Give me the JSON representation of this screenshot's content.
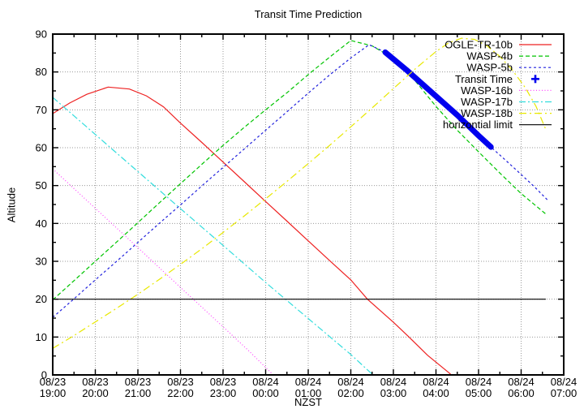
{
  "chart_data": {
    "type": "line",
    "title": "Transit Time Prediction",
    "xlabel": "NZST",
    "ylabel": "Altitude",
    "xlim": [
      0,
      12
    ],
    "ylim": [
      0,
      90
    ],
    "grid": true,
    "legend_position": "top-right-inside",
    "background_color": "#ffffff",
    "axis_color": "#000000",
    "grid_color": "#999999",
    "x_ticks": [
      {
        "date": "08/23",
        "time": "19:00"
      },
      {
        "date": "08/23",
        "time": "20:00"
      },
      {
        "date": "08/23",
        "time": "21:00"
      },
      {
        "date": "08/23",
        "time": "22:00"
      },
      {
        "date": "08/23",
        "time": "23:00"
      },
      {
        "date": "08/24",
        "time": "00:00"
      },
      {
        "date": "08/24",
        "time": "01:00"
      },
      {
        "date": "08/24",
        "time": "02:00"
      },
      {
        "date": "08/24",
        "time": "03:00"
      },
      {
        "date": "08/24",
        "time": "04:00"
      },
      {
        "date": "08/24",
        "time": "05:00"
      },
      {
        "date": "08/24",
        "time": "06:00"
      },
      {
        "date": "08/24",
        "time": "07:00"
      }
    ],
    "y_ticks": [
      "0",
      "10",
      "20",
      "30",
      "40",
      "50",
      "60",
      "70",
      "80",
      "90"
    ],
    "x_minor_step": 0.5,
    "y_minor_step": 5,
    "series": [
      {
        "name": "OGLE-TR-10b",
        "color": "#ee2222",
        "dash": "",
        "width": 1.2,
        "marker": "",
        "points": [
          [
            0,
            69
          ],
          [
            0.4,
            71.8
          ],
          [
            0.8,
            74.1
          ],
          [
            1.3,
            76
          ],
          [
            1.8,
            75.5
          ],
          [
            2.2,
            73.7
          ],
          [
            2.6,
            70.8
          ],
          [
            3,
            66.5
          ],
          [
            3.5,
            61.4
          ],
          [
            4,
            56.2
          ],
          [
            4.5,
            51
          ],
          [
            5,
            45.8
          ],
          [
            5.5,
            40.6
          ],
          [
            6,
            35.4
          ],
          [
            6.5,
            30.2
          ],
          [
            7,
            25.1
          ],
          [
            7.39,
            20
          ],
          [
            8,
            13.9
          ],
          [
            8.34,
            10.3
          ],
          [
            8.8,
            5.2
          ],
          [
            9.3,
            0.6
          ],
          [
            9.36,
            0
          ]
        ]
      },
      {
        "name": "WASP-4b",
        "color": "#00c400",
        "dash": "5,3",
        "width": 1.2,
        "marker": "",
        "points": [
          [
            0,
            19.8
          ],
          [
            0.5,
            24.9
          ],
          [
            1,
            30
          ],
          [
            1.5,
            35.1
          ],
          [
            2,
            40.2
          ],
          [
            2.5,
            45.4
          ],
          [
            3,
            50.5
          ],
          [
            3.5,
            55.6
          ],
          [
            4,
            60.6
          ],
          [
            4.5,
            65.4
          ],
          [
            5,
            70
          ],
          [
            5.5,
            74.5
          ],
          [
            6,
            79.3
          ],
          [
            6.5,
            83.9
          ],
          [
            7,
            88.3
          ],
          [
            7.5,
            86.9
          ],
          [
            8,
            83.6
          ],
          [
            8.5,
            77.8
          ],
          [
            9,
            70.9
          ],
          [
            9.5,
            64.6
          ],
          [
            10,
            58.9
          ],
          [
            10.5,
            53.3
          ],
          [
            11,
            47.9
          ],
          [
            11.58,
            42.5
          ]
        ]
      },
      {
        "name": "WASP-5b",
        "color": "#2222dd",
        "dash": "3,3",
        "width": 1.2,
        "marker": "",
        "points": [
          [
            0,
            15.2
          ],
          [
            0.5,
            20.1
          ],
          [
            1,
            25.1
          ],
          [
            1.5,
            30
          ],
          [
            2,
            35
          ],
          [
            2.5,
            40
          ],
          [
            3,
            44.9
          ],
          [
            3.5,
            49.9
          ],
          [
            4,
            54.8
          ],
          [
            4.5,
            59.7
          ],
          [
            5,
            64.6
          ],
          [
            5.5,
            69.5
          ],
          [
            6,
            74.4
          ],
          [
            6.5,
            79.2
          ],
          [
            7,
            83.7
          ],
          [
            7.43,
            87.2
          ],
          [
            7.81,
            85.2
          ],
          [
            8.3,
            80.6
          ],
          [
            9,
            73.6
          ],
          [
            9.5,
            68.6
          ],
          [
            10,
            63.2
          ],
          [
            10.29,
            60.2
          ],
          [
            10.8,
            55
          ],
          [
            11.3,
            49.8
          ],
          [
            11.62,
            46.2
          ]
        ]
      },
      {
        "name": "Transit Time",
        "color": "#0000ee",
        "dash": "",
        "width": 7,
        "marker": "plus",
        "points": [
          [
            7.81,
            85.2
          ],
          [
            8.3,
            80.6
          ],
          [
            9,
            73.6
          ],
          [
            9.5,
            68.6
          ],
          [
            10,
            63.2
          ],
          [
            10.29,
            60.2
          ]
        ]
      },
      {
        "name": "WASP-16b",
        "color": "#ff44ff",
        "dash": "1,2.5",
        "width": 1.2,
        "marker": "",
        "points": [
          [
            0,
            54.4
          ],
          [
            1,
            44
          ],
          [
            2,
            33.6
          ],
          [
            3,
            23.1
          ],
          [
            4,
            12.7
          ],
          [
            4.6,
            6.4
          ],
          [
            5.18,
            0
          ]
        ]
      },
      {
        "name": "WASP-17b",
        "color": "#33dddd",
        "dash": "8,3,2,3",
        "width": 1.2,
        "marker": "",
        "points": [
          [
            0,
            73.3
          ],
          [
            1,
            63.5
          ],
          [
            2,
            53.7
          ],
          [
            3,
            43.9
          ],
          [
            4,
            34.2
          ],
          [
            5,
            24.4
          ],
          [
            6,
            14.9
          ],
          [
            7,
            5.4
          ],
          [
            7.52,
            0
          ]
        ]
      },
      {
        "name": "WASP-18b",
        "color": "#e8e800",
        "dash": "9,4,2,4",
        "width": 1.2,
        "marker": "",
        "points": [
          [
            0,
            7
          ],
          [
            0.5,
            10.4
          ],
          [
            1,
            14
          ],
          [
            1.5,
            17.6
          ],
          [
            2,
            21.3
          ],
          [
            2.5,
            25.2
          ],
          [
            3,
            29.2
          ],
          [
            3.5,
            33.3
          ],
          [
            4,
            37.6
          ],
          [
            4.5,
            42
          ],
          [
            5,
            46.5
          ],
          [
            5.5,
            51.1
          ],
          [
            6,
            55.8
          ],
          [
            6.5,
            60.6
          ],
          [
            7,
            65.5
          ],
          [
            7.5,
            70.5
          ],
          [
            8,
            75.6
          ],
          [
            8.5,
            80.7
          ],
          [
            9,
            85.4
          ],
          [
            9.3,
            87.7
          ],
          [
            9.6,
            88.9
          ],
          [
            9.9,
            88.6
          ],
          [
            10.2,
            86.9
          ],
          [
            10.5,
            84.1
          ],
          [
            10.8,
            80.4
          ],
          [
            11.1,
            75.8
          ],
          [
            11.35,
            70.9
          ],
          [
            11.58,
            64.8
          ]
        ]
      },
      {
        "name": "horizontial limit",
        "color": "#000000",
        "dash": "",
        "width": 1.2,
        "marker": "",
        "points": [
          [
            0,
            20
          ],
          [
            11.58,
            20
          ]
        ]
      }
    ]
  }
}
